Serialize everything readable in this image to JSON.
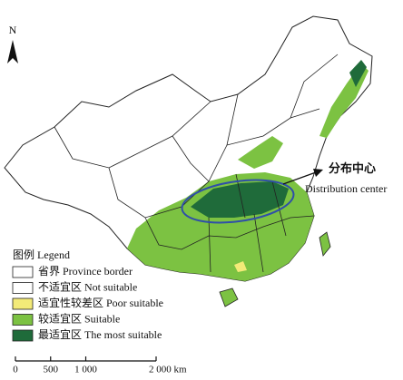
{
  "north_label": "N",
  "legend": {
    "title": "图例 Legend",
    "items": [
      {
        "label": "省界 Province border",
        "color": "#ffffff",
        "kind": "line"
      },
      {
        "label": "不适宜区 Not suitable",
        "color": "#ffffff"
      },
      {
        "label": "适宜性较差区 Poor suitable",
        "color": "#f3ea78"
      },
      {
        "label": "较适宜区 Suitable",
        "color": "#7cc242"
      },
      {
        "label": "最适宜区 The most suitable",
        "color": "#1f6b3a"
      }
    ]
  },
  "annotation": {
    "label_cn": "分布中心",
    "label_en": "Distribution center"
  },
  "scale_bar": {
    "ticks": [
      0,
      500,
      {
        "value": 1000,
        "label": "1 000"
      },
      {
        "value": 2000,
        "label": "2 000 km"
      }
    ]
  }
}
